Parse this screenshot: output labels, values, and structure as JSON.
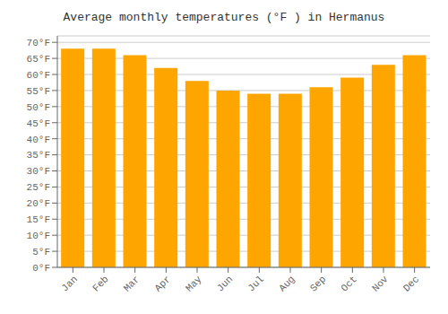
{
  "chart_data": {
    "type": "bar",
    "title": "Average monthly temperatures (°F ) in Hermanus",
    "categories": [
      "Jan",
      "Feb",
      "Mar",
      "Apr",
      "May",
      "Jun",
      "Jul",
      "Aug",
      "Sep",
      "Oct",
      "Nov",
      "Dec"
    ],
    "values": [
      68,
      68,
      66,
      62,
      58,
      55,
      54,
      54,
      56,
      59,
      63,
      66
    ],
    "color": "#FFA500",
    "ylim": [
      0,
      72
    ],
    "yticks": [
      {
        "value": 0,
        "label": "0°F"
      },
      {
        "value": 5,
        "label": "5°F"
      },
      {
        "value": 10,
        "label": "10°F"
      },
      {
        "value": 15,
        "label": "15°F"
      },
      {
        "value": 20,
        "label": "20°F"
      },
      {
        "value": 25,
        "label": "25°F"
      },
      {
        "value": 30,
        "label": "30°F"
      },
      {
        "value": 35,
        "label": "35°F"
      },
      {
        "value": 40,
        "label": "40°F"
      },
      {
        "value": 45,
        "label": "45°F"
      },
      {
        "value": 50,
        "label": "50°F"
      },
      {
        "value": 55,
        "label": "55°F"
      },
      {
        "value": 60,
        "label": "60°F"
      },
      {
        "value": 65,
        "label": "65°F"
      },
      {
        "value": 70,
        "label": "70°F"
      }
    ],
    "grid": true
  }
}
